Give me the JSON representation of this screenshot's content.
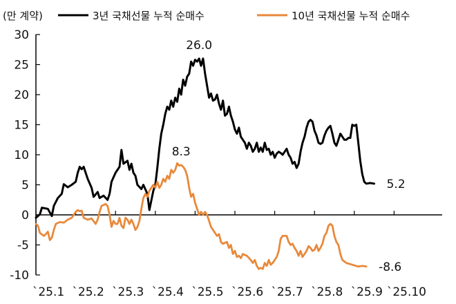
{
  "chart_data": {
    "type": "line",
    "unit_label": "(만 계약)",
    "ylim": [
      -10,
      30
    ],
    "yticks": [
      "30",
      "25",
      "20",
      "15",
      "10",
      "5",
      "0",
      "-5",
      "-10"
    ],
    "ytick_values": [
      30,
      25,
      20,
      15,
      10,
      5,
      0,
      -5,
      -10
    ],
    "xlim": [
      0,
      10.4
    ],
    "xticks": [
      "`25.1",
      "`25.2",
      "`25.3",
      "`25.4",
      "`25.5",
      "`25.6",
      "`25.7",
      "`25.8",
      "`25.9",
      "`25.10"
    ],
    "xtick_values": [
      0,
      1,
      2,
      3,
      4,
      5,
      6,
      7,
      8,
      9
    ],
    "grid": false,
    "legend_position": "top",
    "series": [
      {
        "name": "3년 국채선물 누적 순매수",
        "color": "#000000",
        "points": [
          [
            0.0,
            -0.5
          ],
          [
            0.1,
            0.1
          ],
          [
            0.15,
            1.2
          ],
          [
            0.3,
            1.0
          ],
          [
            0.4,
            -0.2
          ],
          [
            0.45,
            1.5
          ],
          [
            0.55,
            2.8
          ],
          [
            0.65,
            3.5
          ],
          [
            0.7,
            5.1
          ],
          [
            0.8,
            4.6
          ],
          [
            0.9,
            5.0
          ],
          [
            1.0,
            5.5
          ],
          [
            1.05,
            7.0
          ],
          [
            1.1,
            8.0
          ],
          [
            1.15,
            7.6
          ],
          [
            1.2,
            8.0
          ],
          [
            1.3,
            6.0
          ],
          [
            1.4,
            4.5
          ],
          [
            1.45,
            3.0
          ],
          [
            1.55,
            3.8
          ],
          [
            1.6,
            2.8
          ],
          [
            1.7,
            3.2
          ],
          [
            1.8,
            2.5
          ],
          [
            1.85,
            3.5
          ],
          [
            1.9,
            5.5
          ],
          [
            2.0,
            7.0
          ],
          [
            2.1,
            8.0
          ],
          [
            2.15,
            10.8
          ],
          [
            2.2,
            8.5
          ],
          [
            2.3,
            9.0
          ],
          [
            2.35,
            7.5
          ],
          [
            2.4,
            8.5
          ],
          [
            2.45,
            7.0
          ],
          [
            2.5,
            6.5
          ],
          [
            2.55,
            5.0
          ],
          [
            2.65,
            4.3
          ],
          [
            2.7,
            5.0
          ],
          [
            2.8,
            3.5
          ],
          [
            2.85,
            0.8
          ],
          [
            2.95,
            4.0
          ],
          [
            3.0,
            5.0
          ],
          [
            3.05,
            7.8
          ],
          [
            3.1,
            11.0
          ],
          [
            3.15,
            13.5
          ],
          [
            3.2,
            15.0
          ],
          [
            3.25,
            16.8
          ],
          [
            3.3,
            18.0
          ],
          [
            3.35,
            17.5
          ],
          [
            3.4,
            19.0
          ],
          [
            3.45,
            18.0
          ],
          [
            3.5,
            19.5
          ],
          [
            3.55,
            18.8
          ],
          [
            3.6,
            21.0
          ],
          [
            3.65,
            20.0
          ],
          [
            3.7,
            22.5
          ],
          [
            3.75,
            21.5
          ],
          [
            3.8,
            23.0
          ],
          [
            3.85,
            23.5
          ],
          [
            3.9,
            25.5
          ],
          [
            3.95,
            24.8
          ],
          [
            4.0,
            25.8
          ],
          [
            4.05,
            25.5
          ],
          [
            4.1,
            26.0
          ],
          [
            4.15,
            24.8
          ],
          [
            4.2,
            26.0
          ],
          [
            4.25,
            23.5
          ],
          [
            4.3,
            21.5
          ],
          [
            4.35,
            19.5
          ],
          [
            4.4,
            20.2
          ],
          [
            4.45,
            19.0
          ],
          [
            4.5,
            19.2
          ],
          [
            4.55,
            20.0
          ],
          [
            4.6,
            18.5
          ],
          [
            4.65,
            17.5
          ],
          [
            4.7,
            19.0
          ],
          [
            4.75,
            16.5
          ],
          [
            4.8,
            16.8
          ],
          [
            4.85,
            18.0
          ],
          [
            4.9,
            16.5
          ],
          [
            4.95,
            15.5
          ],
          [
            5.0,
            14.2
          ],
          [
            5.05,
            13.5
          ],
          [
            5.1,
            14.5
          ],
          [
            5.15,
            13.0
          ],
          [
            5.2,
            12.5
          ],
          [
            5.25,
            12.0
          ],
          [
            5.3,
            11.0
          ],
          [
            5.35,
            12.0
          ],
          [
            5.4,
            11.5
          ],
          [
            5.45,
            10.5
          ],
          [
            5.5,
            11.0
          ],
          [
            5.55,
            12.0
          ],
          [
            5.6,
            10.5
          ],
          [
            5.65,
            11.2
          ],
          [
            5.7,
            10.5
          ],
          [
            5.75,
            12.0
          ],
          [
            5.8,
            10.8
          ],
          [
            5.85,
            11.0
          ],
          [
            5.9,
            10.0
          ],
          [
            5.95,
            10.5
          ],
          [
            6.0,
            9.5
          ],
          [
            6.05,
            10.2
          ],
          [
            6.1,
            10.5
          ],
          [
            6.15,
            10.3
          ],
          [
            6.2,
            10.0
          ],
          [
            6.25,
            10.5
          ],
          [
            6.3,
            11.0
          ],
          [
            6.35,
            10.0
          ],
          [
            6.4,
            9.5
          ],
          [
            6.45,
            8.5
          ],
          [
            6.5,
            8.8
          ],
          [
            6.55,
            7.8
          ],
          [
            6.6,
            8.5
          ],
          [
            6.65,
            10.5
          ],
          [
            6.7,
            12.0
          ],
          [
            6.75,
            13.0
          ],
          [
            6.8,
            14.5
          ],
          [
            6.85,
            15.5
          ],
          [
            6.9,
            15.8
          ],
          [
            6.95,
            15.5
          ],
          [
            7.0,
            14.0
          ],
          [
            7.05,
            13.2
          ],
          [
            7.1,
            12.0
          ],
          [
            7.15,
            11.8
          ],
          [
            7.2,
            12.0
          ],
          [
            7.25,
            13.2
          ],
          [
            7.3,
            14.0
          ],
          [
            7.35,
            14.5
          ],
          [
            7.4,
            14.8
          ],
          [
            7.45,
            13.5
          ],
          [
            7.5,
            12.0
          ],
          [
            7.55,
            11.5
          ],
          [
            7.6,
            12.5
          ],
          [
            7.65,
            13.5
          ],
          [
            7.7,
            13.0
          ],
          [
            7.75,
            12.5
          ],
          [
            7.8,
            12.5
          ],
          [
            7.85,
            12.8
          ],
          [
            7.9,
            12.8
          ],
          [
            7.95,
            15.0
          ],
          [
            8.0,
            14.8
          ],
          [
            8.05,
            15.0
          ],
          [
            8.1,
            12.0
          ],
          [
            8.15,
            9.0
          ],
          [
            8.2,
            6.8
          ],
          [
            8.25,
            5.5
          ],
          [
            8.3,
            5.2
          ],
          [
            8.4,
            5.3
          ],
          [
            8.5,
            5.2
          ]
        ]
      },
      {
        "name": "10년 국채선물 누적 순매수",
        "color": "#e8893b",
        "points": [
          [
            0.0,
            -1.5
          ],
          [
            0.05,
            -1.8
          ],
          [
            0.1,
            -3.0
          ],
          [
            0.2,
            -3.5
          ],
          [
            0.25,
            -3.2
          ],
          [
            0.3,
            -2.8
          ],
          [
            0.35,
            -4.2
          ],
          [
            0.4,
            -3.8
          ],
          [
            0.45,
            -2.5
          ],
          [
            0.5,
            -1.5
          ],
          [
            0.6,
            -1.2
          ],
          [
            0.7,
            -1.3
          ],
          [
            0.8,
            -0.8
          ],
          [
            0.9,
            -0.5
          ],
          [
            1.0,
            0.5
          ],
          [
            1.05,
            0.8
          ],
          [
            1.1,
            0.6
          ],
          [
            1.15,
            0.7
          ],
          [
            1.2,
            -0.5
          ],
          [
            1.3,
            -0.8
          ],
          [
            1.4,
            -0.6
          ],
          [
            1.5,
            -1.5
          ],
          [
            1.55,
            -0.8
          ],
          [
            1.6,
            0.5
          ],
          [
            1.65,
            1.5
          ],
          [
            1.75,
            1.8
          ],
          [
            1.8,
            1.5
          ],
          [
            1.85,
            0.0
          ],
          [
            1.9,
            -2.0
          ],
          [
            1.95,
            -1.0
          ],
          [
            2.0,
            -1.5
          ],
          [
            2.05,
            -1.5
          ],
          [
            2.1,
            -0.5
          ],
          [
            2.15,
            -1.8
          ],
          [
            2.2,
            -2.2
          ],
          [
            2.25,
            -0.5
          ],
          [
            2.3,
            -0.8
          ],
          [
            2.35,
            -1.5
          ],
          [
            2.4,
            -0.8
          ],
          [
            2.45,
            -1.5
          ],
          [
            2.5,
            -2.5
          ],
          [
            2.55,
            -2.0
          ],
          [
            2.6,
            -1.0
          ],
          [
            2.65,
            1.0
          ],
          [
            2.7,
            2.8
          ],
          [
            2.75,
            3.5
          ],
          [
            2.8,
            3.0
          ],
          [
            2.85,
            4.0
          ],
          [
            2.9,
            4.5
          ],
          [
            2.95,
            5.0
          ],
          [
            3.0,
            4.5
          ],
          [
            3.05,
            5.5
          ],
          [
            3.1,
            4.5
          ],
          [
            3.15,
            5.0
          ],
          [
            3.2,
            6.0
          ],
          [
            3.25,
            5.5
          ],
          [
            3.3,
            6.5
          ],
          [
            3.35,
            6.0
          ],
          [
            3.4,
            7.5
          ],
          [
            3.45,
            7.0
          ],
          [
            3.5,
            7.5
          ],
          [
            3.55,
            8.6
          ],
          [
            3.6,
            8.2
          ],
          [
            3.65,
            8.3
          ],
          [
            3.7,
            8.0
          ],
          [
            3.75,
            7.5
          ],
          [
            3.8,
            6.5
          ],
          [
            3.85,
            4.5
          ],
          [
            3.9,
            3.0
          ],
          [
            3.95,
            3.5
          ],
          [
            4.0,
            2.0
          ],
          [
            4.05,
            1.0
          ],
          [
            4.1,
            0.0
          ],
          [
            4.15,
            0.5
          ],
          [
            4.2,
            0.0
          ],
          [
            4.25,
            0.5
          ],
          [
            4.3,
            0.0
          ],
          [
            4.35,
            -1.0
          ],
          [
            4.4,
            -2.0
          ],
          [
            4.5,
            -3.0
          ],
          [
            4.55,
            -3.5
          ],
          [
            4.6,
            -3.2
          ],
          [
            4.65,
            -4.5
          ],
          [
            4.7,
            -4.8
          ],
          [
            4.8,
            -4.5
          ],
          [
            4.85,
            -5.5
          ],
          [
            4.9,
            -5.0
          ],
          [
            4.95,
            -6.5
          ],
          [
            5.0,
            -6.0
          ],
          [
            5.05,
            -7.0
          ],
          [
            5.1,
            -6.8
          ],
          [
            5.15,
            -7.2
          ],
          [
            5.2,
            -6.5
          ],
          [
            5.3,
            -6.8
          ],
          [
            5.4,
            -7.5
          ],
          [
            5.45,
            -8.0
          ],
          [
            5.5,
            -7.5
          ],
          [
            5.55,
            -8.5
          ],
          [
            5.6,
            -9.0
          ],
          [
            5.65,
            -8.8
          ],
          [
            5.7,
            -9.0
          ],
          [
            5.75,
            -8.0
          ],
          [
            5.8,
            -8.5
          ],
          [
            5.85,
            -7.5
          ],
          [
            5.9,
            -8.3
          ],
          [
            5.95,
            -8.0
          ],
          [
            6.0,
            -7.5
          ],
          [
            6.05,
            -7.0
          ],
          [
            6.1,
            -6.0
          ],
          [
            6.15,
            -4.0
          ],
          [
            6.2,
            -3.5
          ],
          [
            6.3,
            -3.5
          ],
          [
            6.35,
            -4.5
          ],
          [
            6.4,
            -5.0
          ],
          [
            6.45,
            -4.8
          ],
          [
            6.5,
            -5.5
          ],
          [
            6.55,
            -6.0
          ],
          [
            6.6,
            -6.8
          ],
          [
            6.65,
            -6.0
          ],
          [
            6.7,
            -7.0
          ],
          [
            6.75,
            -6.5
          ],
          [
            6.8,
            -6.0
          ],
          [
            6.85,
            -5.2
          ],
          [
            6.9,
            -5.5
          ],
          [
            6.95,
            -6.0
          ],
          [
            7.0,
            -5.8
          ],
          [
            7.05,
            -5.0
          ],
          [
            7.1,
            -6.0
          ],
          [
            7.15,
            -5.5
          ],
          [
            7.2,
            -4.8
          ],
          [
            7.25,
            -3.5
          ],
          [
            7.3,
            -3.0
          ],
          [
            7.35,
            -1.8
          ],
          [
            7.4,
            -1.5
          ],
          [
            7.45,
            -1.8
          ],
          [
            7.5,
            -3.5
          ],
          [
            7.55,
            -4.5
          ],
          [
            7.6,
            -5.0
          ],
          [
            7.65,
            -6.5
          ],
          [
            7.7,
            -7.5
          ],
          [
            7.8,
            -8.0
          ],
          [
            7.9,
            -8.2
          ],
          [
            8.0,
            -8.4
          ],
          [
            8.1,
            -8.6
          ],
          [
            8.2,
            -8.5
          ],
          [
            8.3,
            -8.6
          ]
        ]
      }
    ],
    "annotations": [
      {
        "text": "26.0",
        "series": 0,
        "x": 4.1,
        "y": 26.0,
        "placement": "above"
      },
      {
        "text": "8.3",
        "series": 1,
        "x": 3.65,
        "y": 8.3,
        "placement": "above"
      },
      {
        "text": "5.2",
        "series": 0,
        "x": 8.5,
        "y": 5.2,
        "placement": "right"
      },
      {
        "text": "-8.6",
        "series": 1,
        "x": 8.3,
        "y": -8.6,
        "placement": "right"
      }
    ]
  }
}
